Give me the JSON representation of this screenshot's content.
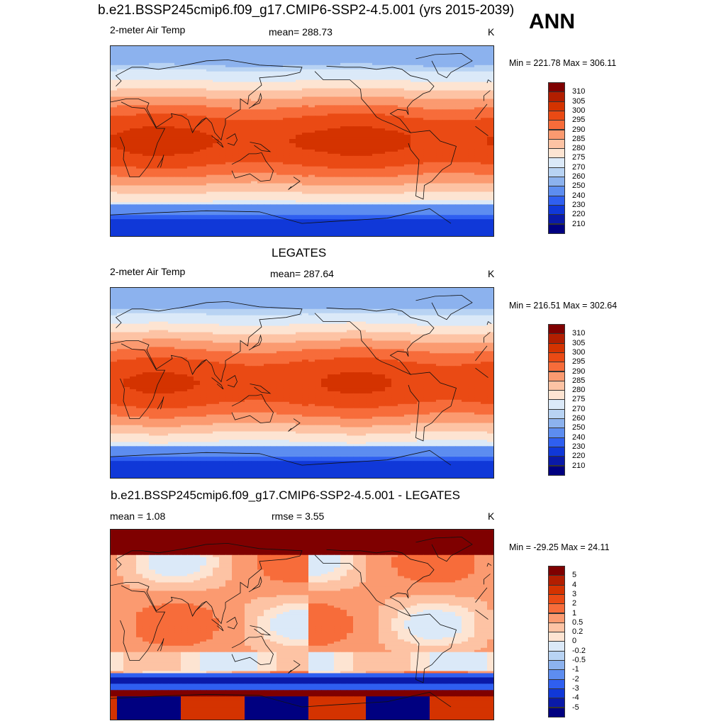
{
  "figure": {
    "title": "b.e21.BSSP245cmip6.f09_g17.CMIP6-SSP2-4.5.001 (yrs 2015-2039)",
    "season": "ANN"
  },
  "panels": [
    {
      "id": "model",
      "title": "",
      "left_label": "2-meter Air Temp",
      "center_label": "mean= 288.73",
      "right_label": "K",
      "minmax": "Min = 221.78 Max = 306.11",
      "colorbar": {
        "labels": [
          "310",
          "305",
          "300",
          "295",
          "290",
          "285",
          "280",
          "275",
          "270",
          "260",
          "250",
          "240",
          "230",
          "220",
          "210"
        ],
        "colors": [
          "#7f0000",
          "#b21e00",
          "#d43300",
          "#ea4a14",
          "#f76c3a",
          "#fb9a70",
          "#fdc3a4",
          "#fde4d2",
          "#dbe9f8",
          "#b8d3f3",
          "#8cb2ee",
          "#5d8df0",
          "#2f5ff0",
          "#1038d8",
          "#0a1aa8",
          "#000080"
        ]
      },
      "field": "model"
    },
    {
      "id": "obs",
      "title": "LEGATES",
      "left_label": "2-meter Air Temp",
      "center_label": "mean= 287.64",
      "right_label": "K",
      "minmax": "Min = 216.51 Max = 302.64",
      "colorbar": {
        "labels": [
          "310",
          "305",
          "300",
          "295",
          "290",
          "285",
          "280",
          "275",
          "270",
          "260",
          "250",
          "240",
          "230",
          "220",
          "210"
        ],
        "colors": [
          "#7f0000",
          "#b21e00",
          "#d43300",
          "#ea4a14",
          "#f76c3a",
          "#fb9a70",
          "#fdc3a4",
          "#fde4d2",
          "#dbe9f8",
          "#b8d3f3",
          "#8cb2ee",
          "#5d8df0",
          "#2f5ff0",
          "#1038d8",
          "#0a1aa8",
          "#000080"
        ]
      },
      "field": "obs"
    },
    {
      "id": "diff",
      "title": "b.e21.BSSP245cmip6.f09_g17.CMIP6-SSP2-4.5.001 - LEGATES",
      "left_label": "mean =   1.08",
      "center_label": "rmse =   3.55",
      "right_label": "K",
      "minmax": "Min = -29.25 Max =  24.11",
      "colorbar": {
        "labels": [
          "5",
          "4",
          "3",
          "2",
          "1",
          "0.5",
          "0.2",
          "0",
          "-0.2",
          "-0.5",
          "-1",
          "-2",
          "-3",
          "-4",
          "-5"
        ],
        "colors": [
          "#7f0000",
          "#b21e00",
          "#d43300",
          "#ea4a14",
          "#f76c3a",
          "#fb9a70",
          "#fdc3a4",
          "#fde4d2",
          "#dbe9f8",
          "#b8d3f3",
          "#8cb2ee",
          "#5d8df0",
          "#2f5ff0",
          "#1038d8",
          "#0a1aa8",
          "#000080"
        ]
      },
      "field": "diff"
    }
  ]
}
